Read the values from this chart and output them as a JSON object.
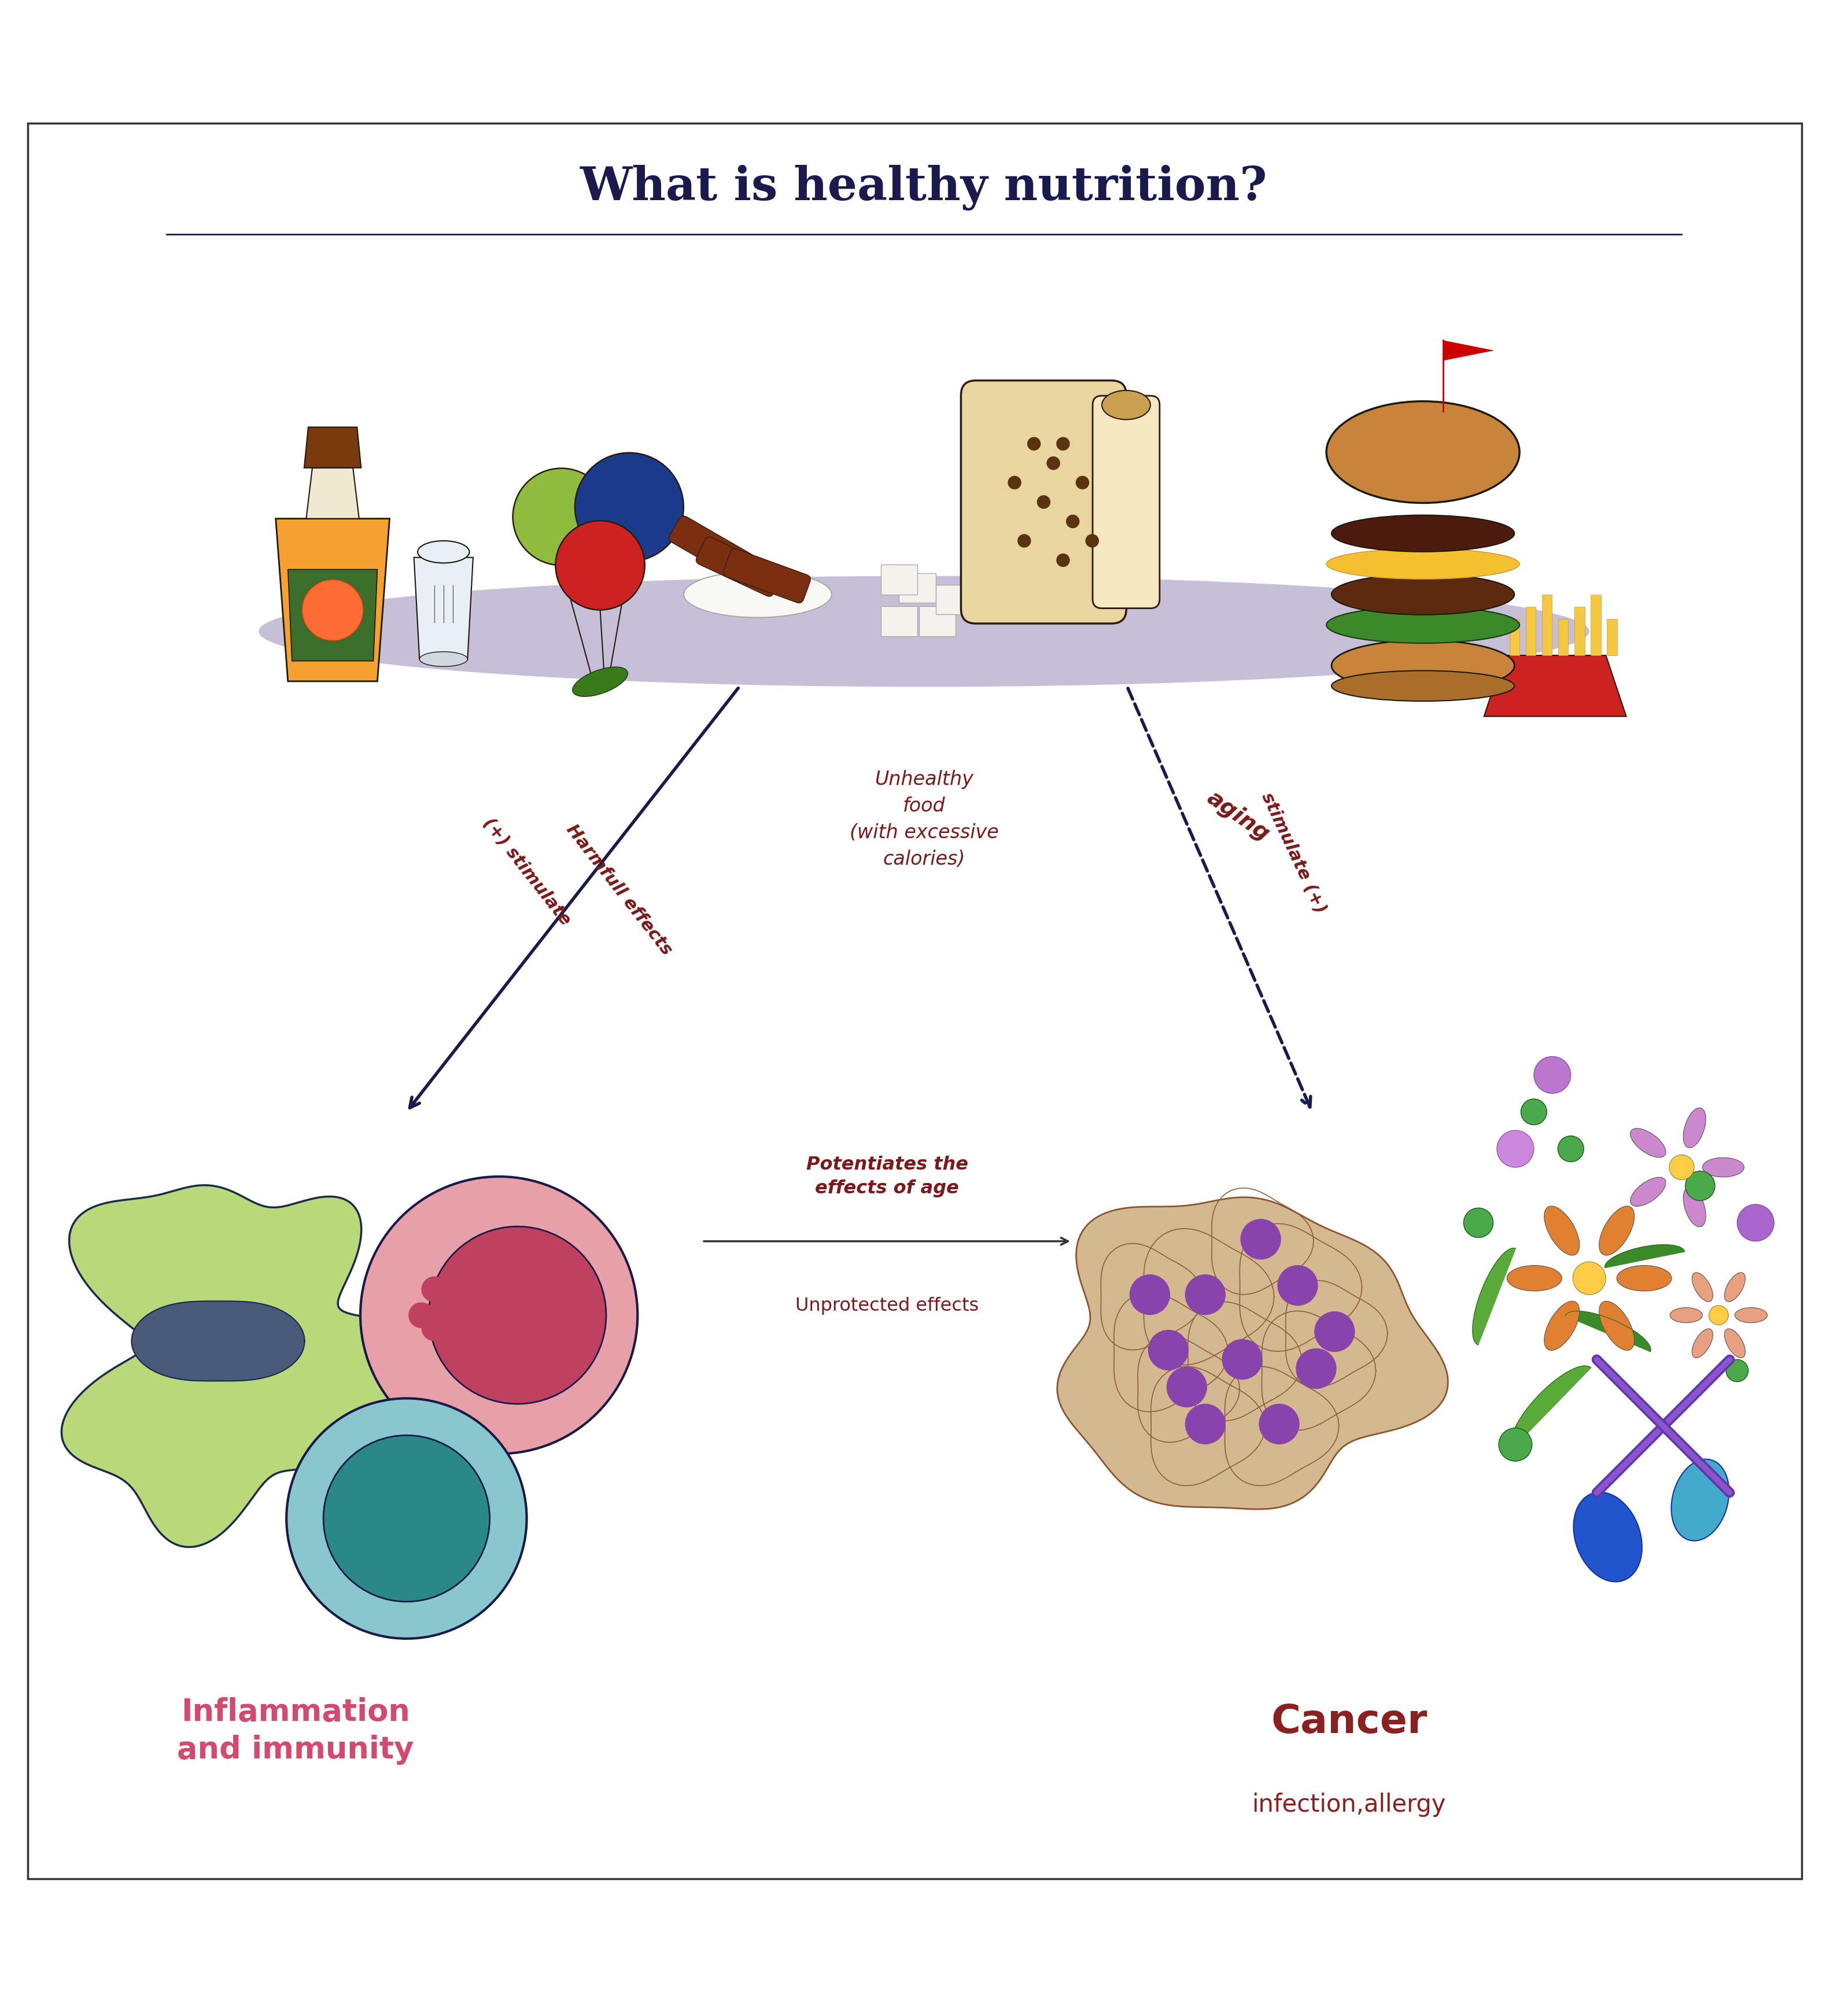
{
  "title": "What is healthy nutrition?",
  "title_color": "#1a1a4e",
  "title_fontsize": 58,
  "bg_color": "#ffffff",
  "border_color": "#333333",
  "unhealthy_food_label": "Unhealthy\nfood\n(with excessive\ncalories)",
  "unhealthy_food_color": "#7a1a1a",
  "aging_label": "aging",
  "aging_color": "#7a1a1a",
  "stimulate_left_label": "(+) stimulate",
  "harmfull_label": "Harmfull effects",
  "stimulate_right_label": "stimulate (+)",
  "arrow_label_color": "#7a1a1a",
  "left_bottom_title": "Inflammation\nand immunity",
  "left_bottom_color": "#d44a6e",
  "right_bottom_title": "Cancer",
  "right_bottom_subtitle": "infection,allergy",
  "right_bottom_color": "#8b2020",
  "center_arrow_text1": "Potentiates the\neffects of age",
  "center_arrow_text2": "Unprotected effects",
  "center_arrow_color": "#333333",
  "arrow_color": "#1a1a4e",
  "dashed_arrow_color": "#1a1a4e",
  "shadow_color": "#9080b0"
}
